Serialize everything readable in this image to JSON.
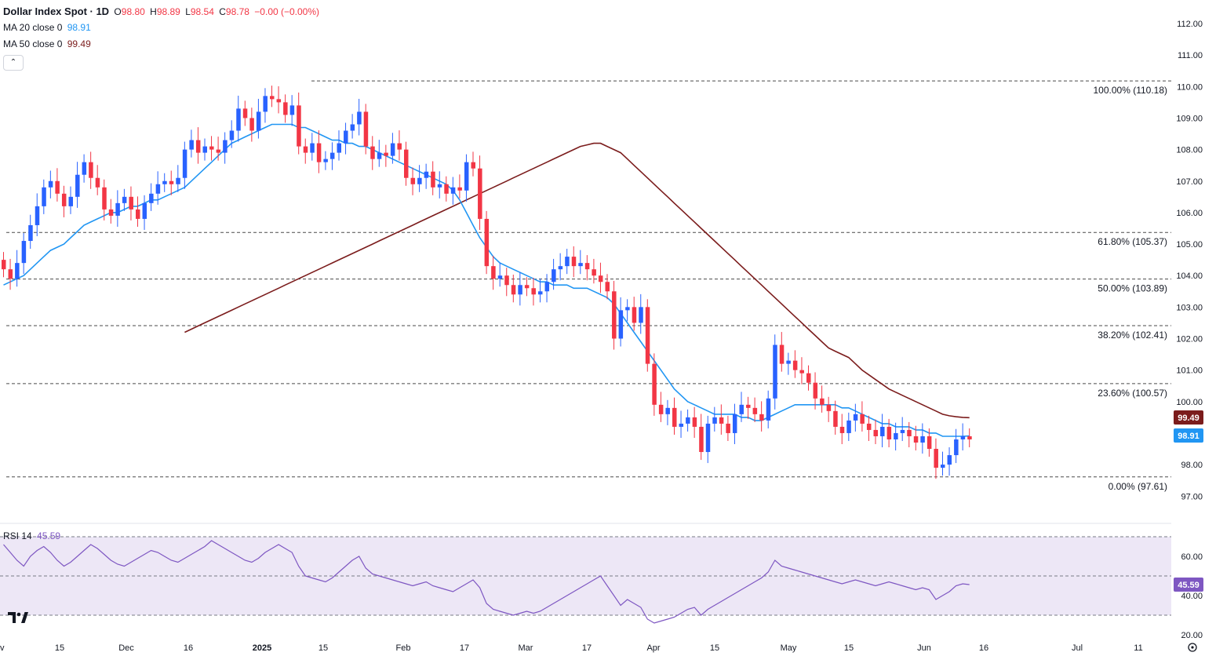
{
  "header": {
    "title": "Dollar Index Spot · 1D",
    "o_label": "O",
    "o": "98.80",
    "h_label": "H",
    "h": "98.89",
    "l_label": "L",
    "l": "98.54",
    "c_label": "C",
    "c": "98.78",
    "change": "−0.00 (−0.00%)"
  },
  "indicators": {
    "ma20": {
      "label": "MA 20 close 0",
      "value": "98.91"
    },
    "ma50": {
      "label": "MA 50 close 0",
      "value": "99.49"
    },
    "collapse_glyph": "⌃"
  },
  "colors": {
    "up": "#2962ff",
    "down": "#f23645",
    "ma20": "#2196f3",
    "ma50": "#7b1c1c",
    "rsi": "#7e57c2",
    "rsi_band": "#ede7f6",
    "grid_dash": "#555555"
  },
  "price_axis": {
    "ticks": [
      "112.00",
      "111.00",
      "110.00",
      "109.00",
      "108.00",
      "107.00",
      "106.00",
      "105.00",
      "104.00",
      "103.00",
      "102.00",
      "101.00",
      "100.00",
      "98.00",
      "97.00"
    ],
    "ma50_badge": "99.49",
    "ma20_badge": "98.91"
  },
  "rsi": {
    "label": "RSI 14",
    "value": "45.59",
    "ticks": [
      "60.00",
      "40.00",
      "20.00"
    ],
    "badge": "45.59"
  },
  "time_axis": {
    "labels": [
      "v",
      "15",
      "Dec",
      "16",
      "2025",
      "15",
      "Feb",
      "17",
      "Mar",
      "17",
      "Apr",
      "15",
      "May",
      "15",
      "Jun",
      "16",
      "Jul",
      "11"
    ]
  },
  "chart_data": {
    "type": "candlestick",
    "title": "Dollar Index Spot · 1D",
    "y_range": [
      96.5,
      112.4
    ],
    "fib_levels": [
      {
        "label": "100.00% (110.18)",
        "value": 110.18
      },
      {
        "label": "61.80% (105.37)",
        "value": 105.37
      },
      {
        "label": "50.00% (103.89)",
        "value": 103.89
      },
      {
        "label": "38.20% (102.41)",
        "value": 102.41
      },
      {
        "label": "23.60% (100.57)",
        "value": 100.57
      },
      {
        "label": "0.00% (97.61)",
        "value": 97.61
      }
    ],
    "closes": [
      104.2,
      103.9,
      104.4,
      105.1,
      105.6,
      106.2,
      106.8,
      107.0,
      106.6,
      106.2,
      106.5,
      107.2,
      107.6,
      107.1,
      106.8,
      106.1,
      105.9,
      106.3,
      106.5,
      106.1,
      105.8,
      106.3,
      106.6,
      106.9,
      107.0,
      106.9,
      107.1,
      108.0,
      108.3,
      107.9,
      108.1,
      108.0,
      107.9,
      108.3,
      108.6,
      109.3,
      109.0,
      108.6,
      109.2,
      109.7,
      109.6,
      109.5,
      109.1,
      109.4,
      108.1,
      107.9,
      108.2,
      107.6,
      107.7,
      107.9,
      108.2,
      108.6,
      108.8,
      109.2,
      108.1,
      107.7,
      107.9,
      107.8,
      108.2,
      108.0,
      107.1,
      106.9,
      107.1,
      107.3,
      106.8,
      106.9,
      106.6,
      106.8,
      106.7,
      107.6,
      107.4,
      105.8,
      104.3,
      103.9,
      104.0,
      103.7,
      103.4,
      103.7,
      103.6,
      103.4,
      103.5,
      103.8,
      104.2,
      104.3,
      104.6,
      104.3,
      104.4,
      104.2,
      104.0,
      103.8,
      103.5,
      102.0,
      102.9,
      103.0,
      102.5,
      103.0,
      101.2,
      99.9,
      99.6,
      99.8,
      99.2,
      99.3,
      99.5,
      99.2,
      98.4,
      99.3,
      99.5,
      99.3,
      99.0,
      99.6,
      99.9,
      99.8,
      99.6,
      99.4,
      100.1,
      101.8,
      101.2,
      101.3,
      101.0,
      100.9,
      100.6,
      100.1,
      99.9,
      99.7,
      99.2,
      99.0,
      99.4,
      99.6,
      99.3,
      99.1,
      98.9,
      99.2,
      98.8,
      99.0,
      99.1,
      98.9,
      98.7,
      98.9,
      98.5,
      97.9,
      98.0,
      98.3,
      98.8,
      98.9,
      98.8
    ],
    "ma20": [
      103.7,
      103.8,
      103.9,
      104.0,
      104.2,
      104.4,
      104.6,
      104.8,
      104.9,
      105.0,
      105.2,
      105.4,
      105.6,
      105.7,
      105.8,
      105.9,
      106.0,
      106.0,
      106.1,
      106.2,
      106.2,
      106.3,
      106.4,
      106.4,
      106.5,
      106.6,
      106.7,
      106.8,
      107.0,
      107.2,
      107.4,
      107.6,
      107.8,
      108.0,
      108.2,
      108.3,
      108.4,
      108.5,
      108.6,
      108.7,
      108.8,
      108.8,
      108.8,
      108.8,
      108.7,
      108.7,
      108.6,
      108.5,
      108.4,
      108.3,
      108.3,
      108.2,
      108.2,
      108.1,
      108.1,
      108.0,
      107.9,
      107.8,
      107.7,
      107.6,
      107.5,
      107.4,
      107.3,
      107.2,
      107.1,
      107.0,
      106.9,
      106.7,
      106.4,
      106.0,
      105.6,
      105.2,
      104.9,
      104.6,
      104.4,
      104.3,
      104.2,
      104.1,
      104.0,
      103.9,
      103.8,
      103.8,
      103.7,
      103.7,
      103.7,
      103.6,
      103.6,
      103.6,
      103.5,
      103.4,
      103.3,
      103.1,
      102.8,
      102.5,
      102.2,
      101.9,
      101.6,
      101.3,
      101.0,
      100.7,
      100.4,
      100.2,
      100.0,
      99.9,
      99.8,
      99.7,
      99.6,
      99.6,
      99.6,
      99.6,
      99.5,
      99.5,
      99.4,
      99.4,
      99.5,
      99.6,
      99.7,
      99.8,
      99.9,
      99.9,
      99.9,
      99.9,
      99.9,
      99.9,
      99.9,
      99.8,
      99.8,
      99.7,
      99.6,
      99.5,
      99.4,
      99.3,
      99.3,
      99.2,
      99.2,
      99.2,
      99.1,
      99.1,
      99.0,
      99.0,
      98.9,
      98.9,
      98.9,
      98.9,
      98.91
    ],
    "ma50": [
      102.2,
      102.3,
      102.4,
      102.5,
      102.6,
      102.7,
      102.8,
      102.9,
      103.0,
      103.1,
      103.2,
      103.3,
      103.4,
      103.5,
      103.6,
      103.7,
      103.8,
      103.9,
      104.0,
      104.1,
      104.2,
      104.3,
      104.4,
      104.5,
      104.6,
      104.7,
      104.8,
      104.9,
      105.0,
      105.1,
      105.2,
      105.3,
      105.4,
      105.5,
      105.6,
      105.7,
      105.8,
      105.9,
      106.0,
      106.1,
      106.2,
      106.3,
      106.4,
      106.5,
      106.6,
      106.7,
      106.8,
      106.9,
      107.0,
      107.1,
      107.2,
      107.3,
      107.4,
      107.5,
      107.6,
      107.7,
      107.8,
      107.9,
      108.0,
      108.1,
      108.15,
      108.2,
      108.2,
      108.1,
      108.0,
      107.9,
      107.7,
      107.5,
      107.3,
      107.1,
      106.9,
      106.7,
      106.5,
      106.3,
      106.1,
      105.9,
      105.7,
      105.5,
      105.3,
      105.1,
      104.9,
      104.7,
      104.5,
      104.3,
      104.1,
      103.9,
      103.7,
      103.5,
      103.3,
      103.1,
      102.9,
      102.7,
      102.5,
      102.3,
      102.1,
      101.9,
      101.7,
      101.6,
      101.5,
      101.4,
      101.2,
      101.0,
      100.85,
      100.7,
      100.55,
      100.4,
      100.3,
      100.2,
      100.1,
      100.0,
      99.9,
      99.8,
      99.7,
      99.6,
      99.55,
      99.52,
      99.5,
      99.49
    ],
    "rsi": [
      66,
      62,
      58,
      55,
      60,
      63,
      65,
      62,
      58,
      55,
      57,
      60,
      63,
      66,
      64,
      61,
      58,
      56,
      55,
      57,
      59,
      61,
      63,
      62,
      60,
      58,
      57,
      59,
      61,
      63,
      65,
      68,
      66,
      64,
      62,
      60,
      58,
      57,
      59,
      62,
      64,
      66,
      64,
      62,
      55,
      50,
      49,
      48,
      47,
      49,
      52,
      55,
      58,
      60,
      54,
      51,
      50,
      49,
      48,
      47,
      46,
      45,
      46,
      47,
      45,
      44,
      43,
      42,
      44,
      46,
      48,
      44,
      36,
      33,
      32,
      31,
      30,
      31,
      32,
      31,
      32,
      34,
      36,
      38,
      40,
      42,
      44,
      46,
      48,
      50,
      45,
      40,
      35,
      38,
      36,
      34,
      28,
      26,
      27,
      28,
      29,
      31,
      33,
      34,
      30,
      33,
      35,
      37,
      39,
      41,
      43,
      45,
      47,
      49,
      52,
      58,
      55,
      54,
      53,
      52,
      51,
      50,
      49,
      48,
      47,
      46,
      47,
      48,
      47,
      46,
      45,
      46,
      47,
      46,
      45,
      44,
      43,
      44,
      43,
      38,
      40,
      42,
      45,
      46,
      45.59
    ]
  }
}
